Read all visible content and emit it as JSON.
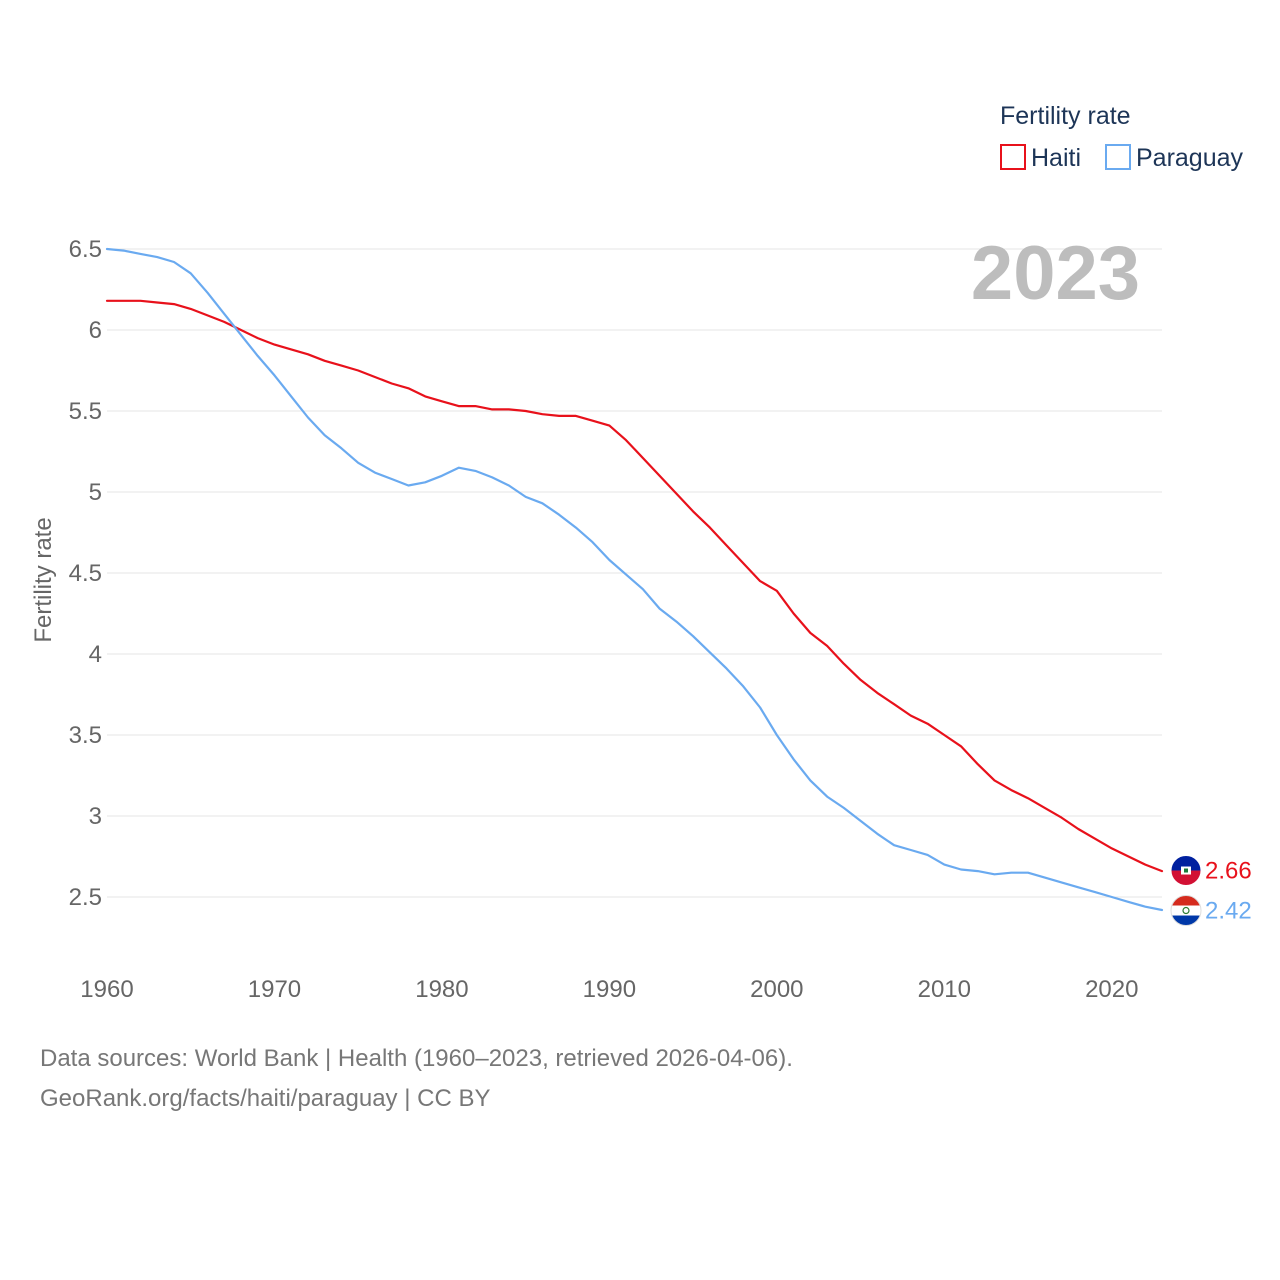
{
  "chart_data": {
    "type": "line",
    "title": "",
    "ylabel": "Fertility rate",
    "xlabel": "",
    "xlim": [
      1960,
      2023
    ],
    "ylim": [
      2.1,
      6.65
    ],
    "yticks": [
      2.5,
      3,
      3.5,
      4,
      4.5,
      5,
      5.5,
      6,
      6.5
    ],
    "ytick_labels": [
      "2.5",
      "3",
      "3.5",
      "4",
      "4.5",
      "5",
      "5.5",
      "6",
      "6.5"
    ],
    "xticks": [
      1960,
      1970,
      1980,
      1990,
      2000,
      2010,
      2020
    ],
    "xtick_labels": [
      "1960",
      "1970",
      "1980",
      "1990",
      "2000",
      "2010",
      "2020"
    ],
    "grid": true,
    "year_label": "2023",
    "legend": {
      "title": "Fertility rate",
      "position": "top-right"
    },
    "x": [
      1960,
      1961,
      1962,
      1963,
      1964,
      1965,
      1966,
      1967,
      1968,
      1969,
      1970,
      1971,
      1972,
      1973,
      1974,
      1975,
      1976,
      1977,
      1978,
      1979,
      1980,
      1981,
      1982,
      1983,
      1984,
      1985,
      1986,
      1987,
      1988,
      1989,
      1990,
      1991,
      1992,
      1993,
      1994,
      1995,
      1996,
      1997,
      1998,
      1999,
      2000,
      2001,
      2002,
      2003,
      2004,
      2005,
      2006,
      2007,
      2008,
      2009,
      2010,
      2011,
      2012,
      2013,
      2014,
      2015,
      2016,
      2017,
      2018,
      2019,
      2020,
      2021,
      2022,
      2023
    ],
    "series": [
      {
        "name": "Haiti",
        "color": "#e8111b",
        "icon": "haiti-flag-icon",
        "end_label": "2.66",
        "values": [
          6.18,
          6.18,
          6.18,
          6.17,
          6.16,
          6.13,
          6.09,
          6.05,
          6.0,
          5.95,
          5.91,
          5.88,
          5.85,
          5.81,
          5.78,
          5.75,
          5.71,
          5.67,
          5.64,
          5.59,
          5.56,
          5.53,
          5.53,
          5.51,
          5.51,
          5.5,
          5.48,
          5.47,
          5.47,
          5.44,
          5.41,
          5.32,
          5.21,
          5.1,
          4.99,
          4.88,
          4.78,
          4.67,
          4.56,
          4.45,
          4.39,
          4.25,
          4.13,
          4.05,
          3.94,
          3.84,
          3.76,
          3.69,
          3.62,
          3.57,
          3.5,
          3.43,
          3.32,
          3.22,
          3.16,
          3.11,
          3.05,
          2.99,
          2.92,
          2.86,
          2.8,
          2.75,
          2.7,
          2.66
        ]
      },
      {
        "name": "Paraguay",
        "color": "#6aaaf0",
        "icon": "paraguay-flag-icon",
        "end_label": "2.42",
        "values": [
          6.5,
          6.49,
          6.47,
          6.45,
          6.42,
          6.35,
          6.23,
          6.1,
          5.97,
          5.84,
          5.72,
          5.59,
          5.46,
          5.35,
          5.27,
          5.18,
          5.12,
          5.08,
          5.04,
          5.06,
          5.1,
          5.15,
          5.13,
          5.09,
          5.04,
          4.97,
          4.93,
          4.86,
          4.78,
          4.69,
          4.58,
          4.49,
          4.4,
          4.28,
          4.2,
          4.11,
          4.01,
          3.91,
          3.8,
          3.67,
          3.5,
          3.35,
          3.22,
          3.12,
          3.05,
          2.97,
          2.89,
          2.82,
          2.79,
          2.76,
          2.7,
          2.67,
          2.66,
          2.64,
          2.65,
          2.65,
          2.62,
          2.59,
          2.56,
          2.53,
          2.5,
          2.47,
          2.44,
          2.42
        ]
      }
    ]
  },
  "sources": {
    "line1": "Data sources: World Bank | Health (1960–2023, retrieved 2026-04-06).",
    "line2": "GeoRank.org/facts/haiti/paraguay | CC BY"
  }
}
